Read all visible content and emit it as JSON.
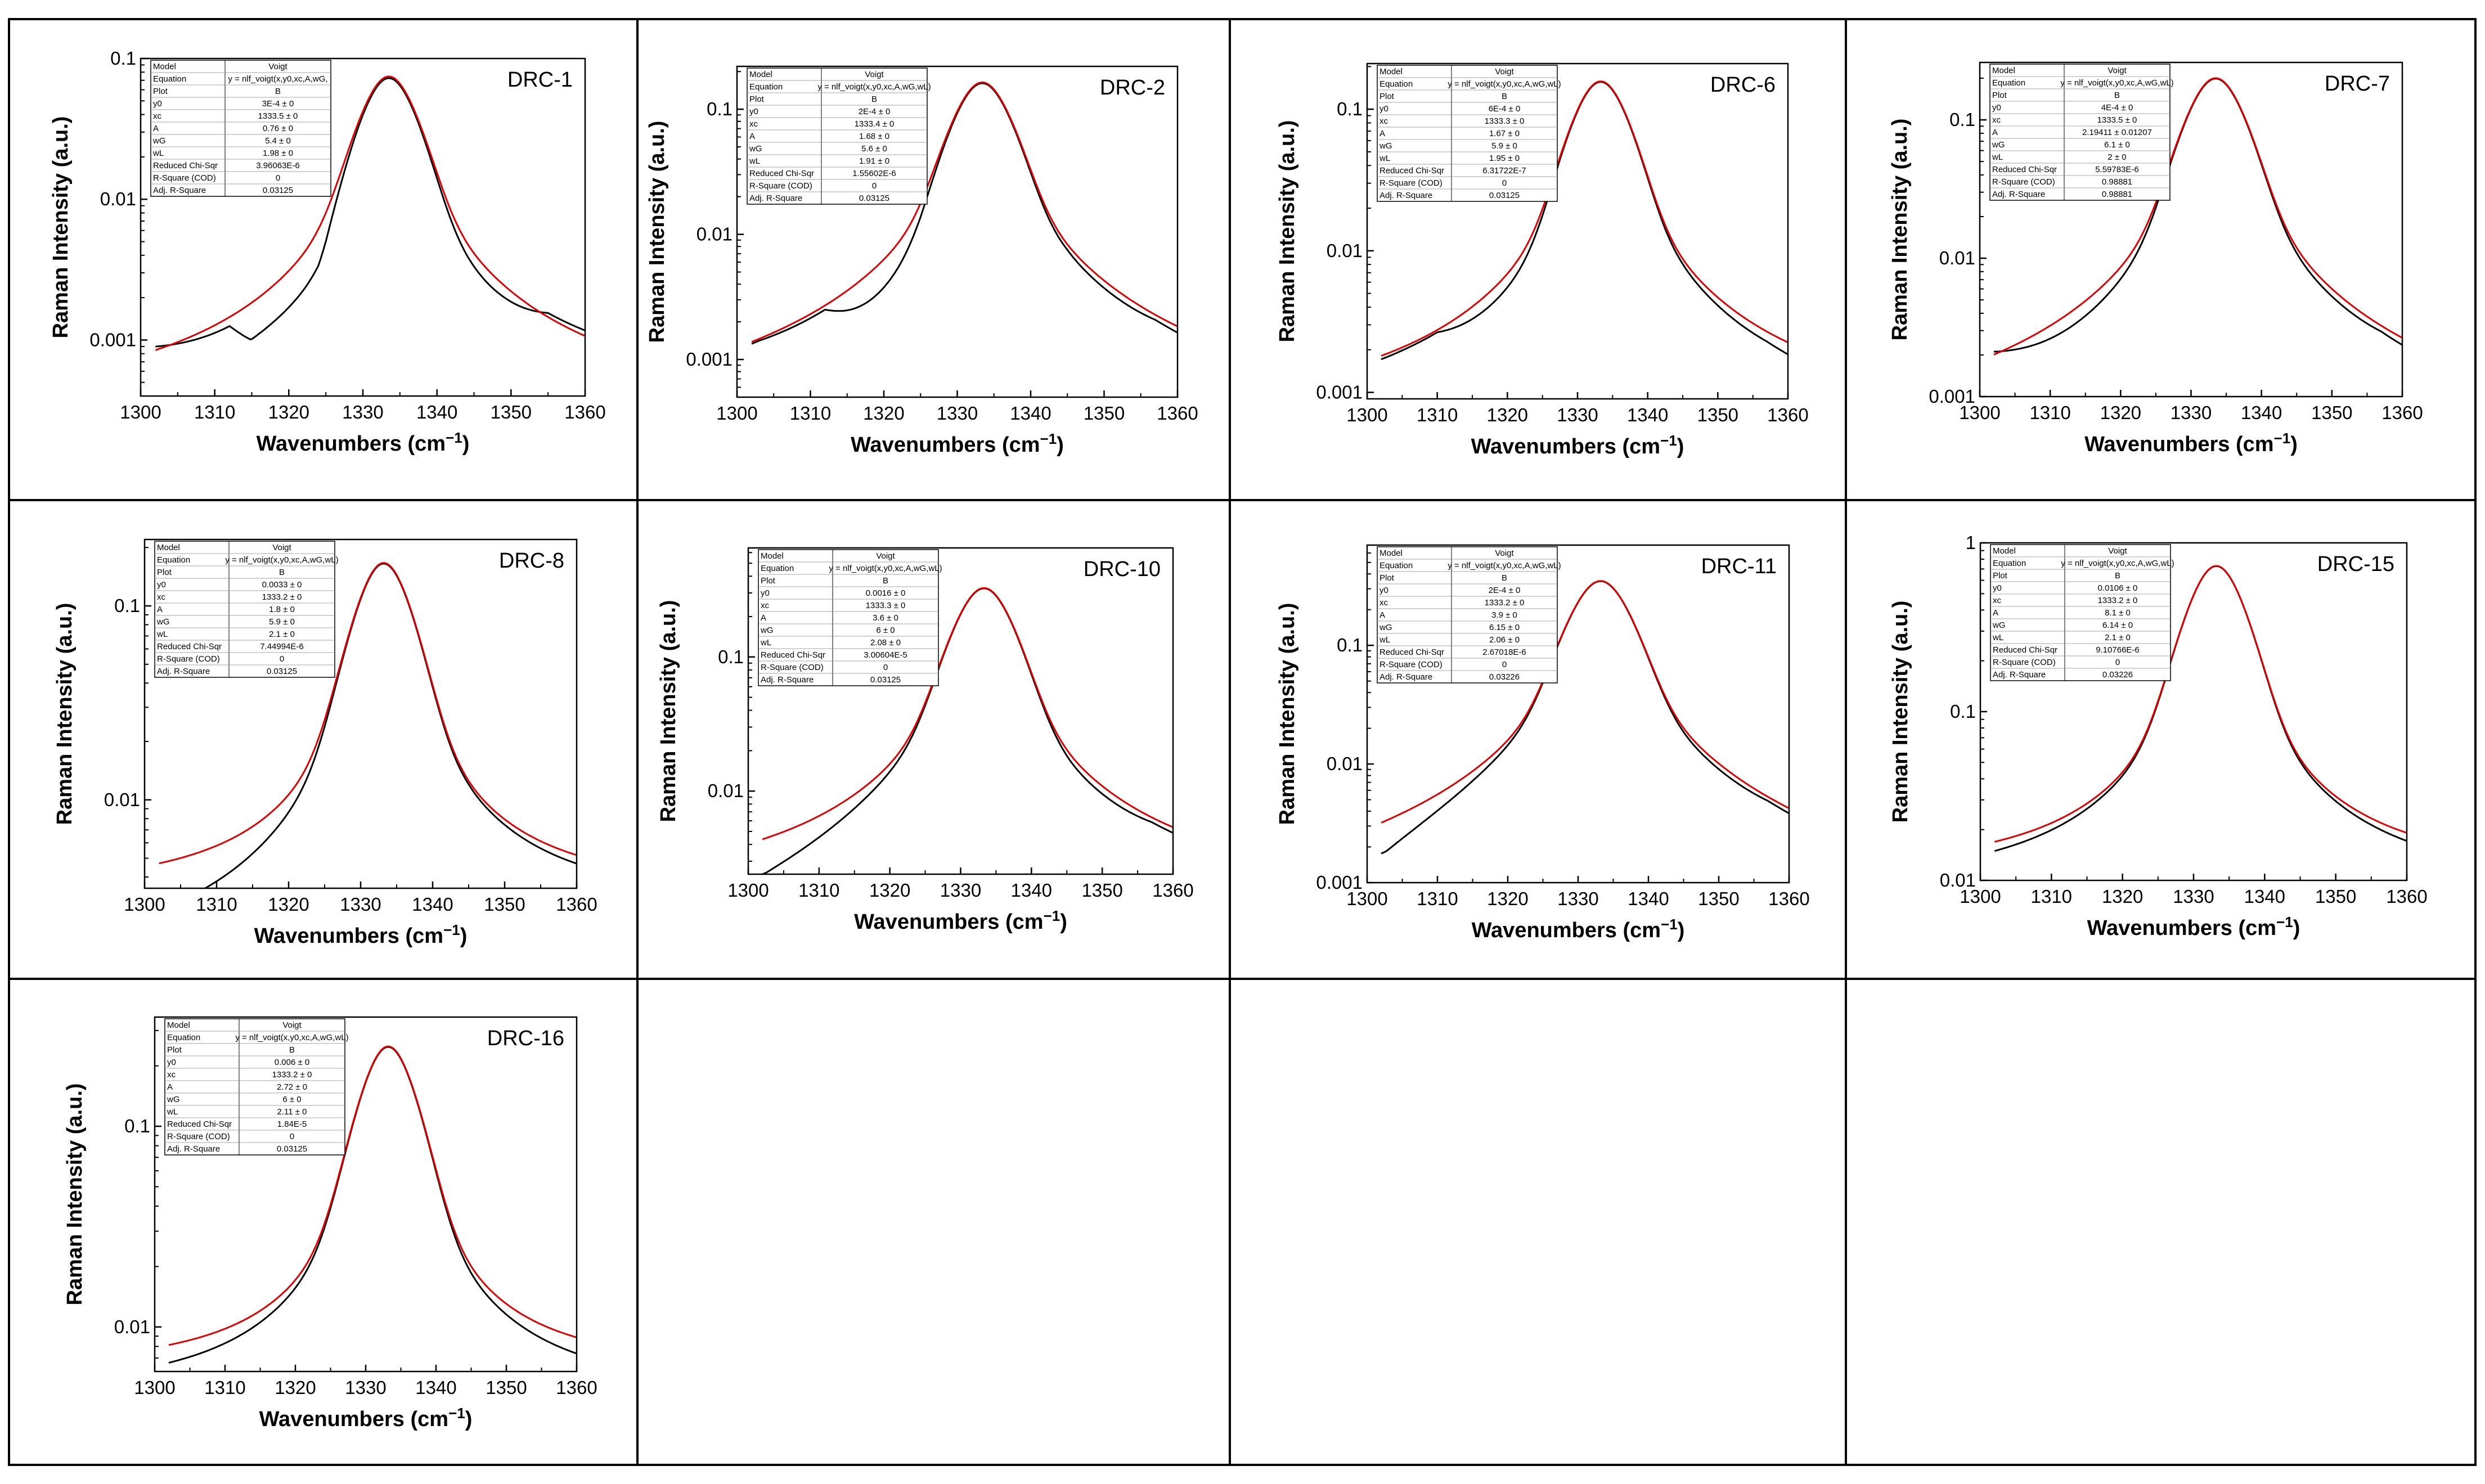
{
  "figure": {
    "xlabel": "Wavenumbers (cm",
    "xlabel_sup": "−1",
    "xlabel_end": ")",
    "ylabel": "Raman Intensity (a.u.)",
    "colors": {
      "data": "#000000",
      "fit": "#e00000",
      "border": "#000000"
    }
  },
  "fit_row_keys": [
    "Model",
    "Equation",
    "Plot",
    "y0",
    "xc",
    "A",
    "wG",
    "wL",
    "Reduced Chi-Sqr",
    "R-Square (COD)",
    "Adj. R-Square"
  ],
  "chart_data": [
    {
      "type": "line",
      "title": "DRC-1",
      "xlabel": "Wavenumbers (cm−1)",
      "ylabel": "Raman Intensity (a.u.)",
      "yscale": "log",
      "xlim": [
        1300,
        1360
      ],
      "ylim": [
        0.0004,
        0.1
      ],
      "yticks": [
        0.001,
        0.01,
        0.1
      ],
      "ytick_labels": [
        "0.001",
        "0.01",
        "0.1"
      ],
      "xticks": [
        1300,
        1310,
        1320,
        1330,
        1340,
        1350,
        1360
      ],
      "fit": {
        "y0": 0.0003,
        "xc": 1333.5,
        "A": 0.76,
        "wG": 5.4,
        "wL": 1.98
      },
      "data_offsets": [
        [
          1302,
          5e-05
        ],
        [
          1312,
          -0.0002
        ],
        [
          1325,
          -0.003
        ],
        [
          1345,
          -0.0008
        ],
        [
          1355,
          0.0001
        ]
      ],
      "table": [
        "Voigt",
        "y = nlf_voigt(x,y0,xc,A,wG,",
        "B",
        "3E-4 ± 0",
        "1333.5 ± 0",
        "0.76 ± 0",
        "5.4 ± 0",
        "1.98 ± 0",
        "3.96063E-6",
        "0",
        "0.03125"
      ]
    },
    {
      "type": "line",
      "title": "DRC-2",
      "xlabel": "Wavenumbers (cm−1)",
      "ylabel": "Raman Intensity (a.u.)",
      "yscale": "log",
      "xlim": [
        1300,
        1360
      ],
      "ylim": [
        0.0005,
        0.22
      ],
      "yticks": [
        0.001,
        0.01,
        0.1
      ],
      "ytick_labels": [
        "0.001",
        "0.01",
        "0.1"
      ],
      "xticks": [
        1300,
        1310,
        1320,
        1330,
        1340,
        1350,
        1360
      ],
      "fit": {
        "y0": 0.0002,
        "xc": 1333.4,
        "A": 1.68,
        "wG": 5.6,
        "wL": 1.91
      },
      "data_offsets": [
        [
          1303,
          -5e-05
        ],
        [
          1312,
          -0.0002
        ],
        [
          1325,
          -0.004
        ],
        [
          1345,
          -0.0008
        ],
        [
          1357,
          -0.0002
        ]
      ],
      "table": [
        "Voigt",
        "y = nlf_voigt(x,y0,xc,A,wG,wL)",
        "B",
        "2E-4 ± 0",
        "1333.4 ± 0",
        "1.68 ± 0",
        "5.6 ± 0",
        "1.91 ± 0",
        "1.55602E-6",
        "0",
        "0.03125"
      ]
    },
    {
      "type": "line",
      "title": "DRC-6",
      "xlabel": "Wavenumbers (cm−1)",
      "ylabel": "Raman Intensity (a.u.)",
      "yscale": "log",
      "xlim": [
        1300,
        1360
      ],
      "ylim": [
        0.0009,
        0.21
      ],
      "yticks": [
        0.001,
        0.01,
        0.1
      ],
      "ytick_labels": [
        "0.001",
        "0.01",
        "0.1"
      ],
      "xticks": [
        1300,
        1310,
        1320,
        1330,
        1340,
        1350,
        1360
      ],
      "fit": {
        "y0": 0.0006,
        "xc": 1333.3,
        "A": 1.67,
        "wG": 5.9,
        "wL": 1.95
      },
      "data_offsets": [
        [
          1310,
          -0.0001
        ],
        [
          1325,
          -0.002
        ],
        [
          1345,
          -0.0007
        ],
        [
          1357,
          -0.0004
        ]
      ],
      "table": [
        "Voigt",
        "y = nlf_voigt(x,y0,xc,A,wG,wL)",
        "B",
        "6E-4 ± 0",
        "1333.3 ± 0",
        "1.67 ± 0",
        "5.9 ± 0",
        "1.95 ± 0",
        "6.31722E-7",
        "0",
        "0.03125"
      ]
    },
    {
      "type": "line",
      "title": "DRC-7",
      "xlabel": "Wavenumbers (cm−1)",
      "ylabel": "Raman Intensity (a.u.)",
      "yscale": "log",
      "xlim": [
        1300,
        1360
      ],
      "ylim": [
        0.001,
        0.26
      ],
      "yticks": [
        0.001,
        0.01,
        0.1
      ],
      "ytick_labels": [
        "0.001",
        "0.01",
        "0.1"
      ],
      "xticks": [
        1300,
        1310,
        1320,
        1330,
        1340,
        1350,
        1360
      ],
      "fit": {
        "y0": 0.0004,
        "xc": 1333.5,
        "A": 2.19411,
        "wG": 6.1,
        "wL": 2.0
      },
      "data_offsets": [
        [
          1302,
          0.0001
        ],
        [
          1325,
          -0.002
        ],
        [
          1345,
          -0.001
        ],
        [
          1357,
          -0.0003
        ]
      ],
      "table": [
        "Voigt",
        "y = nlf_voigt(x,y0,xc,A,wG,wL)",
        "B",
        "4E-4 ± 0",
        "1333.5 ± 0",
        "2.19411 ± 0.01207",
        "6.1 ± 0",
        "2 ± 0",
        "5.59783E-6",
        "0.98881",
        "0.98881"
      ]
    },
    {
      "type": "line",
      "title": "DRC-8",
      "xlabel": "Wavenumbers (cm−1)",
      "ylabel": "Raman Intensity (a.u.)",
      "yscale": "log",
      "xlim": [
        1300,
        1360
      ],
      "ylim": [
        0.0035,
        0.22
      ],
      "yticks": [
        0.01,
        0.1
      ],
      "ytick_labels": [
        "0.01",
        "0.1"
      ],
      "xticks": [
        1300,
        1310,
        1320,
        1330,
        1340,
        1350,
        1360
      ],
      "fit": {
        "y0": 0.0033,
        "xc": 1333.2,
        "A": 1.8,
        "wG": 5.9,
        "wL": 2.1
      },
      "data_offsets": [
        [
          1325,
          -0.002
        ],
        [
          1345,
          -0.0005
        ]
      ],
      "table": [
        "Voigt",
        "y = nlf_voigt(x,y0,xc,A,wG,wL)",
        "B",
        "0.0033 ± 0",
        "1333.2 ± 0",
        "1.8 ± 0",
        "5.9 ± 0",
        "2.1 ± 0",
        "7.44994E-6",
        "0",
        "0.03125"
      ]
    },
    {
      "type": "line",
      "title": "DRC-10",
      "xlabel": "Wavenumbers (cm−1)",
      "ylabel": "Raman Intensity (a.u.)",
      "yscale": "log",
      "xlim": [
        1300,
        1360
      ],
      "ylim": [
        0.0024,
        0.65
      ],
      "yticks": [
        0.01,
        0.1
      ],
      "ytick_labels": [
        "0.01",
        "0.1"
      ],
      "xticks": [
        1300,
        1310,
        1320,
        1330,
        1340,
        1350,
        1360
      ],
      "fit": {
        "y0": 0.0016,
        "xc": 1333.3,
        "A": 3.6,
        "wG": 6.0,
        "wL": 2.08
      },
      "data_offsets": [
        [
          1345,
          -0.002
        ],
        [
          1357,
          -0.0005
        ]
      ],
      "table": [
        "Voigt",
        "y = nlf_voigt(x,y0,xc,A,wG,wL)",
        "B",
        "0.0016 ± 0",
        "1333.3 ± 0",
        "3.6 ± 0",
        "6 ± 0",
        "2.08 ± 0",
        "3.00604E-5",
        "0",
        "0.03125"
      ]
    },
    {
      "type": "line",
      "title": "DRC-11",
      "xlabel": "Wavenumbers (cm−1)",
      "ylabel": "Raman Intensity (a.u.)",
      "yscale": "log",
      "xlim": [
        1300,
        1360
      ],
      "ylim": [
        0.001,
        0.7
      ],
      "yticks": [
        0.001,
        0.01,
        0.1
      ],
      "ytick_labels": [
        "0.001",
        "0.01",
        "0.1"
      ],
      "xticks": [
        1300,
        1310,
        1320,
        1330,
        1340,
        1350,
        1360
      ],
      "fit": {
        "y0": 0.0002,
        "xc": 1333.2,
        "A": 3.9,
        "wG": 6.15,
        "wL": 2.06
      },
      "data_offsets": [
        [
          1345,
          -0.0015
        ],
        [
          1357,
          -0.0004
        ]
      ],
      "table": [
        "Voigt",
        "y = nlf_voigt(x,y0,xc,A,wG,wL)",
        "B",
        "2E-4 ± 0",
        "1333.2 ± 0",
        "3.9 ± 0",
        "6.15 ± 0",
        "2.06 ± 0",
        "2.67018E-6",
        "0",
        "0.03226"
      ]
    },
    {
      "type": "line",
      "title": "DRC-15",
      "xlabel": "Wavenumbers (cm−1)",
      "ylabel": "Raman Intensity (a.u.)",
      "yscale": "log",
      "xlim": [
        1300,
        1360
      ],
      "ylim": [
        0.01,
        1
      ],
      "yticks": [
        0.01,
        0.1,
        1
      ],
      "ytick_labels": [
        "0.01",
        "0.1",
        "1"
      ],
      "xticks": [
        1300,
        1310,
        1320,
        1330,
        1340,
        1350,
        1360
      ],
      "fit": {
        "y0": 0.0106,
        "xc": 1333.2,
        "A": 8.1,
        "wG": 6.14,
        "wL": 2.1
      },
      "data_offsets": [
        [
          1345,
          -0.002
        ]
      ],
      "table": [
        "Voigt",
        "y = nlf_voigt(x,y0,xc,A,wG,wL)",
        "B",
        "0.0106 ± 0",
        "1333.2 ± 0",
        "8.1 ± 0",
        "6.14 ± 0",
        "2.1 ± 0",
        "9.10766E-6",
        "0",
        "0.03226"
      ]
    },
    {
      "type": "line",
      "title": "DRC-16",
      "xlabel": "Wavenumbers (cm−1)",
      "ylabel": "Raman Intensity (a.u.)",
      "yscale": "log",
      "xlim": [
        1300,
        1360
      ],
      "ylim": [
        0.006,
        0.35
      ],
      "yticks": [
        0.01,
        0.1
      ],
      "ytick_labels": [
        "0.01",
        "0.1"
      ],
      "xticks": [
        1300,
        1310,
        1320,
        1330,
        1340,
        1350,
        1360
      ],
      "fit": {
        "y0": 0.006,
        "xc": 1333.2,
        "A": 2.72,
        "wG": 6.0,
        "wL": 2.11
      },
      "data_offsets": [
        [
          1345,
          -0.0015
        ]
      ],
      "table": [
        "Voigt",
        "y = nlf_voigt(x,y0,xc,A,wG,wL)",
        "B",
        "0.006 ± 0",
        "1333.2 ± 0",
        "2.72 ± 0",
        "6 ± 0",
        "2.11 ± 0",
        "1.84E-5",
        "0",
        "0.03125"
      ]
    }
  ]
}
